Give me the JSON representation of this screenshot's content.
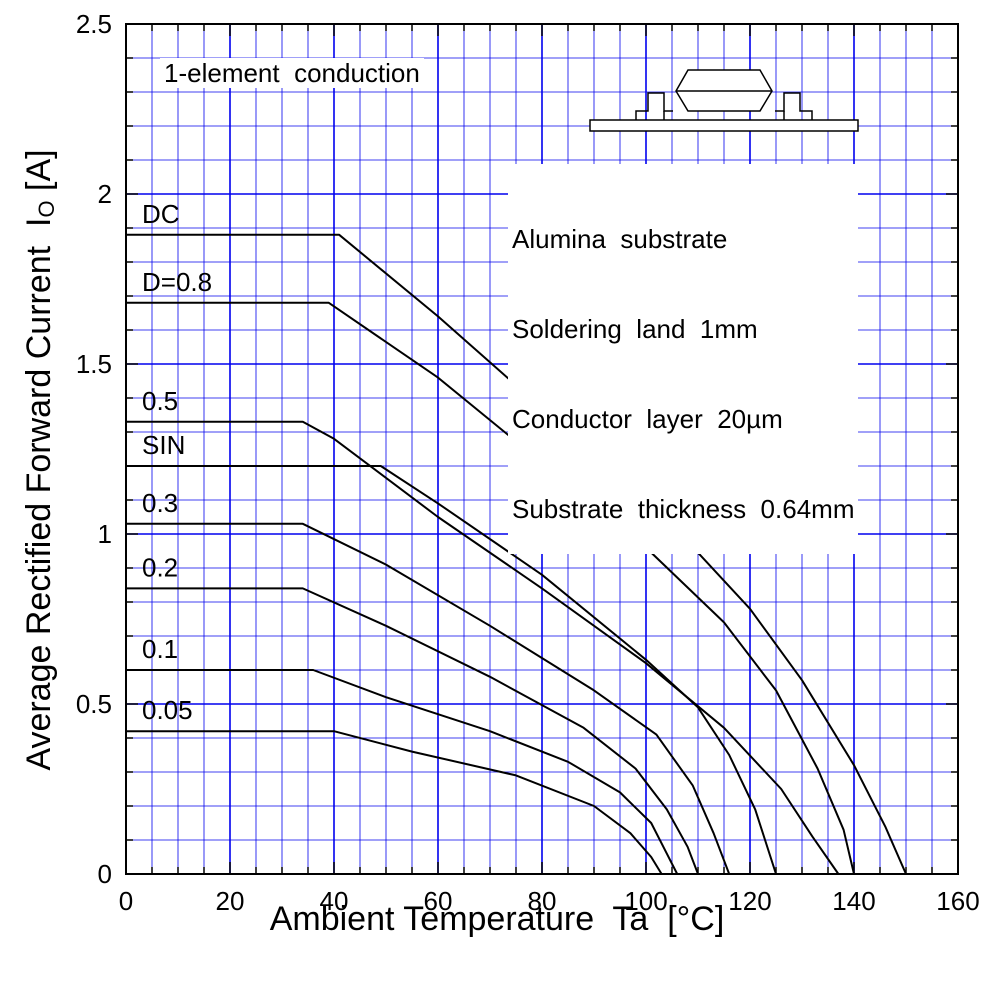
{
  "chart_data": {
    "type": "line",
    "xlabel": "Ambient Temperature  Ta  [°C]",
    "ylabel_main": "Average Rectified Forward Current  I",
    "ylabel_sub": "O",
    "ylabel_unit": " [A]",
    "xlim": [
      0,
      160
    ],
    "ylim": [
      0,
      2.5
    ],
    "x_ticks": [
      0,
      20,
      40,
      60,
      80,
      100,
      120,
      140,
      160
    ],
    "x_tick_labels": [
      "0",
      "20",
      "40",
      "60",
      "80",
      "100",
      "120",
      "140",
      "160"
    ],
    "y_ticks": [
      0,
      0.5,
      1,
      1.5,
      2,
      2.5
    ],
    "y_tick_labels": [
      "0",
      "0.5",
      "1",
      "1.5",
      "2",
      "2.5"
    ],
    "grid": true,
    "series": [
      {
        "name": "DC",
        "points": [
          [
            0,
            1.88
          ],
          [
            41,
            1.88
          ],
          [
            60,
            1.64
          ],
          [
            80,
            1.37
          ],
          [
            100,
            1.11
          ],
          [
            120,
            0.78
          ],
          [
            130,
            0.57
          ],
          [
            140,
            0.32
          ],
          [
            146,
            0.14
          ],
          [
            150,
            0.0
          ]
        ]
      },
      {
        "name": "D=0.8",
        "points": [
          [
            0,
            1.68
          ],
          [
            39,
            1.68
          ],
          [
            60,
            1.46
          ],
          [
            80,
            1.21
          ],
          [
            100,
            0.96
          ],
          [
            115,
            0.74
          ],
          [
            125,
            0.54
          ],
          [
            133,
            0.31
          ],
          [
            138,
            0.13
          ],
          [
            140,
            0.0
          ]
        ]
      },
      {
        "name": "0.5",
        "points": [
          [
            0,
            1.33
          ],
          [
            34,
            1.33
          ],
          [
            40,
            1.28
          ],
          [
            60,
            1.05
          ],
          [
            80,
            0.84
          ],
          [
            100,
            0.62
          ],
          [
            115,
            0.43
          ],
          [
            126,
            0.25
          ],
          [
            132,
            0.11
          ],
          [
            137,
            0.0
          ]
        ]
      },
      {
        "name": "SIN",
        "points": [
          [
            0,
            1.2
          ],
          [
            49,
            1.2
          ],
          [
            60,
            1.09
          ],
          [
            80,
            0.88
          ],
          [
            100,
            0.63
          ],
          [
            110,
            0.49
          ],
          [
            116,
            0.35
          ],
          [
            121,
            0.19
          ],
          [
            125,
            0.0
          ]
        ]
      },
      {
        "name": "0.3",
        "points": [
          [
            0,
            1.03
          ],
          [
            34,
            1.03
          ],
          [
            50,
            0.91
          ],
          [
            70,
            0.73
          ],
          [
            90,
            0.54
          ],
          [
            102,
            0.41
          ],
          [
            109,
            0.26
          ],
          [
            113,
            0.12
          ],
          [
            116,
            0.0
          ]
        ]
      },
      {
        "name": "0.2",
        "points": [
          [
            0,
            0.84
          ],
          [
            34,
            0.84
          ],
          [
            50,
            0.73
          ],
          [
            70,
            0.58
          ],
          [
            88,
            0.43
          ],
          [
            98,
            0.31
          ],
          [
            104,
            0.19
          ],
          [
            108,
            0.08
          ],
          [
            110,
            0.0
          ]
        ]
      },
      {
        "name": "0.1",
        "points": [
          [
            0,
            0.6
          ],
          [
            36,
            0.6
          ],
          [
            50,
            0.52
          ],
          [
            70,
            0.42
          ],
          [
            85,
            0.33
          ],
          [
            95,
            0.24
          ],
          [
            101,
            0.15
          ],
          [
            104,
            0.06
          ],
          [
            106,
            0.0
          ]
        ]
      },
      {
        "name": "0.05",
        "points": [
          [
            0,
            0.42
          ],
          [
            40,
            0.42
          ],
          [
            55,
            0.36
          ],
          [
            75,
            0.29
          ],
          [
            90,
            0.2
          ],
          [
            97,
            0.12
          ],
          [
            101,
            0.05
          ],
          [
            103,
            0.0
          ]
        ]
      }
    ],
    "annotations": {
      "conduction": "1-element  conduction",
      "conditions": [
        "Alumina  substrate",
        "Soldering  land  1mm",
        "Conductor  layer  20µm",
        "Substrate  thickness  0.64mm"
      ]
    },
    "colors": {
      "grid": "#0000ee",
      "axes": "#000000",
      "lines": "#000000"
    }
  }
}
